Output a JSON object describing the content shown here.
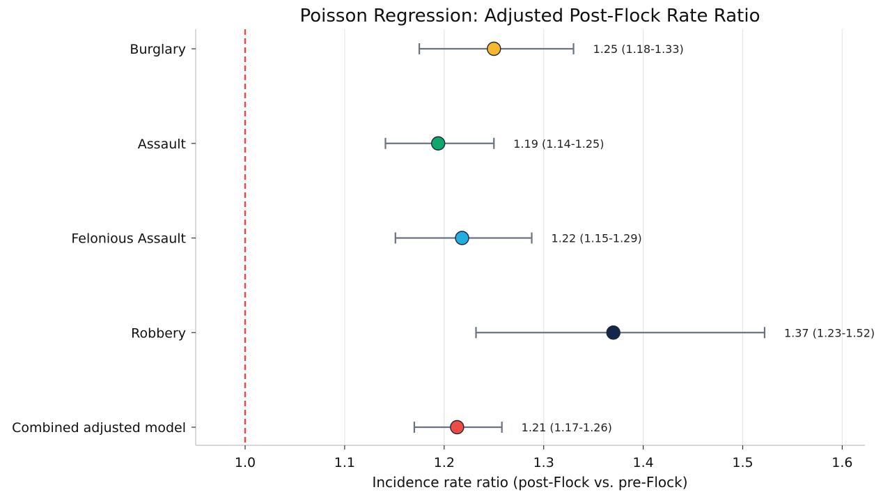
{
  "chart_data": {
    "type": "forest",
    "title": "Poisson Regression: Adjusted Post-Flock Rate Ratio",
    "xlabel": "Incidence rate ratio (post-Flock vs. pre-Flock)",
    "ylabel": "",
    "xlim": [
      0.95,
      1.62
    ],
    "xticks": [
      1.0,
      1.1,
      1.2,
      1.3,
      1.4,
      1.5,
      1.6
    ],
    "xtick_labels": [
      "1.0",
      "1.1",
      "1.2",
      "1.3",
      "1.4",
      "1.5",
      "1.6"
    ],
    "grid": "vertical",
    "reference_line": {
      "x": 1.0,
      "color": "#ef4444",
      "style": "dashed"
    },
    "error_bar_color": "#6b7280",
    "rows": [
      {
        "label": "Burglary",
        "estimate": 1.25,
        "lower": 1.175,
        "upper": 1.33,
        "annotation": "1.25 (1.18-1.33)",
        "color": "#f5b82e"
      },
      {
        "label": "Assault",
        "estimate": 1.194,
        "lower": 1.141,
        "upper": 1.25,
        "annotation": "1.19 (1.14-1.25)",
        "color": "#10a86a"
      },
      {
        "label": "Felonious Assault",
        "estimate": 1.218,
        "lower": 1.151,
        "upper": 1.288,
        "annotation": "1.22 (1.15-1.29)",
        "color": "#22aee0"
      },
      {
        "label": "Robbery",
        "estimate": 1.37,
        "lower": 1.232,
        "upper": 1.522,
        "annotation": "1.37 (1.23-1.52)",
        "color": "#14264a"
      },
      {
        "label": "Combined adjusted model",
        "estimate": 1.213,
        "lower": 1.17,
        "upper": 1.258,
        "annotation": "1.21 (1.17-1.26)",
        "color": "#ee4b45"
      }
    ]
  }
}
